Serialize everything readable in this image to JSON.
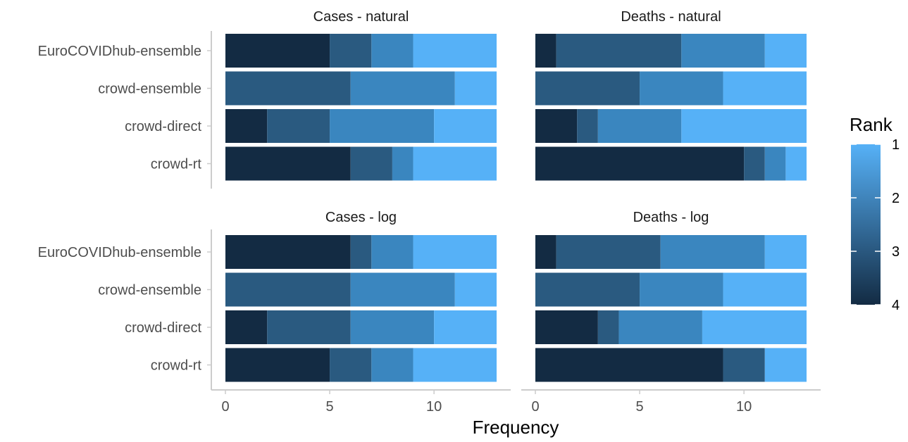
{
  "chart_data": {
    "type": "bar",
    "orientation": "horizontal",
    "stacked": true,
    "xlabel": "Frequency",
    "ylabel": "",
    "xlim": [
      0,
      13
    ],
    "x_ticks": [
      0,
      5,
      10
    ],
    "grid": false,
    "categories": [
      "EuroCOVIDhub-ensemble",
      "crowd-ensemble",
      "crowd-direct",
      "crowd-rt"
    ],
    "legend": {
      "title": "Rank",
      "position": "right",
      "type": "continuous-colorbar",
      "ticks": [
        "1",
        "2",
        "3",
        "4"
      ],
      "colors": {
        "1": "#56b1f7",
        "2": "#3a86bf",
        "3": "#2a5a80",
        "4": "#132b43"
      }
    },
    "rank_colors": {
      "1": "#56b1f7",
      "2": "#3a86bf",
      "3": "#2a5a80",
      "4": "#132b43"
    },
    "panels": [
      {
        "title": "Cases - natural",
        "rows": [
          {
            "category": "EuroCOVIDhub-ensemble",
            "counts": {
              "4": 5,
              "3": 2,
              "2": 2,
              "1": 4
            }
          },
          {
            "category": "crowd-ensemble",
            "counts": {
              "4": 0,
              "3": 6,
              "2": 5,
              "1": 2
            }
          },
          {
            "category": "crowd-direct",
            "counts": {
              "4": 2,
              "3": 3,
              "2": 5,
              "1": 3
            }
          },
          {
            "category": "crowd-rt",
            "counts": {
              "4": 6,
              "3": 2,
              "2": 1,
              "1": 4
            }
          }
        ]
      },
      {
        "title": "Deaths - natural",
        "rows": [
          {
            "category": "EuroCOVIDhub-ensemble",
            "counts": {
              "4": 1,
              "3": 6,
              "2": 4,
              "1": 2
            }
          },
          {
            "category": "crowd-ensemble",
            "counts": {
              "4": 0,
              "3": 5,
              "2": 4,
              "1": 4
            }
          },
          {
            "category": "crowd-direct",
            "counts": {
              "4": 2,
              "3": 1,
              "2": 4,
              "1": 6
            }
          },
          {
            "category": "crowd-rt",
            "counts": {
              "4": 10,
              "3": 1,
              "2": 1,
              "1": 1
            }
          }
        ]
      },
      {
        "title": "Cases - log",
        "rows": [
          {
            "category": "EuroCOVIDhub-ensemble",
            "counts": {
              "4": 6,
              "3": 1,
              "2": 2,
              "1": 4
            }
          },
          {
            "category": "crowd-ensemble",
            "counts": {
              "4": 0,
              "3": 6,
              "2": 5,
              "1": 2
            }
          },
          {
            "category": "crowd-direct",
            "counts": {
              "4": 2,
              "3": 4,
              "2": 4,
              "1": 3
            }
          },
          {
            "category": "crowd-rt",
            "counts": {
              "4": 5,
              "3": 2,
              "2": 2,
              "1": 4
            }
          }
        ]
      },
      {
        "title": "Deaths - log",
        "rows": [
          {
            "category": "EuroCOVIDhub-ensemble",
            "counts": {
              "4": 1,
              "3": 5,
              "2": 5,
              "1": 2
            }
          },
          {
            "category": "crowd-ensemble",
            "counts": {
              "4": 0,
              "3": 5,
              "2": 4,
              "1": 4
            }
          },
          {
            "category": "crowd-direct",
            "counts": {
              "4": 3,
              "3": 1,
              "2": 4,
              "1": 5
            }
          },
          {
            "category": "crowd-rt",
            "counts": {
              "4": 9,
              "3": 2,
              "2": 0,
              "1": 2
            }
          }
        ]
      }
    ]
  }
}
